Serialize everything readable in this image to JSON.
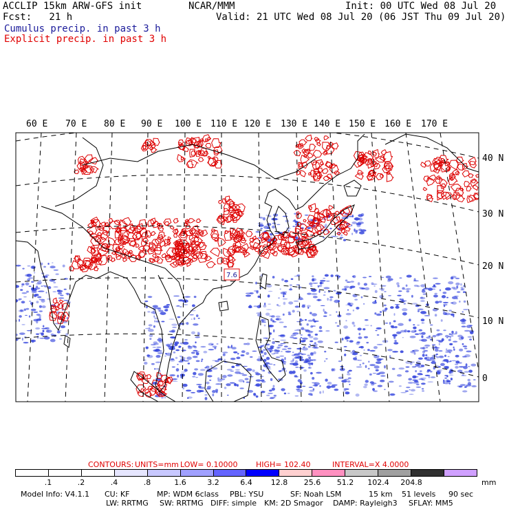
{
  "header": {
    "model_title": "ACCLIP 15km ARW-GFS init",
    "org": "NCAR/MMM",
    "init": "Init: 00 UTC Wed 08 Jul 20",
    "fcst_label": "Fcst:   21 h",
    "valid": "Valid: 21 UTC Wed 08 Jul 20 (06 JST Thu 09 Jul 20)",
    "legend_cumulus": "Cumulus precip. in past 3 h",
    "legend_explicit": "Explicit precip. in past 3 h"
  },
  "map": {
    "lon_labels": [
      "60 E",
      "70 E",
      "80 E",
      "90 E",
      "100 E",
      "110 E",
      "120 E",
      "130 E",
      "140 E",
      "150 E",
      "160 E",
      "170 E"
    ],
    "lat_labels": [
      "40 N",
      "30 N",
      "20 N",
      "10 N",
      "0"
    ],
    "max_marker": "7.6",
    "colors": {
      "cumulus": "#3344dd",
      "explicit": "#dd0000",
      "coast": "#000000",
      "grid": "#000000"
    }
  },
  "contours": {
    "label": "CONTOURS:",
    "units": "UNITS=mm",
    "low": "LOW= 0.10000",
    "high": "HIGH=  102.40",
    "interval": "INTERVAL=X  4.0000"
  },
  "color_scale": {
    "ticks": [
      ".1",
      ".2",
      ".4",
      ".8",
      "1.6",
      "3.2",
      "6.4",
      "12.8",
      "25.6",
      "51.2",
      "102.4",
      "204.8"
    ],
    "unit": "mm",
    "colors": [
      "#ffffff",
      "#ffffff",
      "#ffffff",
      "#e6e6ff",
      "#c8c8ff",
      "#a0a0ff",
      "#6464ff",
      "#0000ff",
      "#ffd0d0",
      "#ff90c0",
      "#c8c8c8",
      "#a0a0a0",
      "#303030"
    ],
    "tail_color": "#d0a0ff"
  },
  "footer": {
    "line1": [
      "Model Info: V4.1.1",
      "CU: KF",
      "MP: WDM 6class",
      "PBL: YSU",
      "SF: Noah LSM",
      "15 km",
      "51 levels",
      "90 sec"
    ],
    "line2": [
      "LW: RRTMG",
      "SW: RRTMG",
      "DIFF: simple",
      "KM: 2D Smagor",
      "DAMP: Rayleigh3",
      "SFLAY: MM5"
    ]
  }
}
